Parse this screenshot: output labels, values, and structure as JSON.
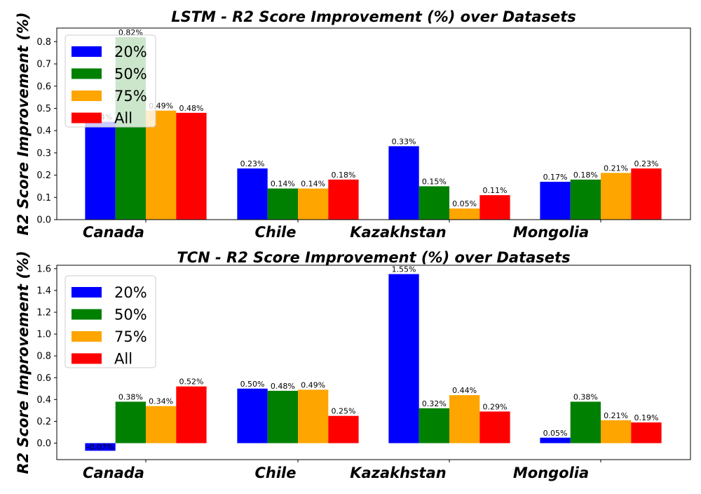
{
  "colors": {
    "20%": "#0000ff",
    "50%": "#008000",
    "75%": "#ffa500",
    "All": "#ff0000"
  },
  "chart_data": [
    {
      "type": "bar",
      "title": "LSTM - R2 Score Improvement (%) over Datasets",
      "ylabel": "R2 Score Improvement (%)",
      "categories": [
        "Canada",
        "Chile",
        "Kazakhstan",
        "Mongolia"
      ],
      "series": [
        {
          "name": "20%",
          "values": [
            0.44,
            0.23,
            0.33,
            0.17
          ],
          "labels": [
            "0.44%",
            "0.23%",
            "0.33%",
            "0.17%"
          ]
        },
        {
          "name": "50%",
          "values": [
            0.82,
            0.14,
            0.15,
            0.18
          ],
          "labels": [
            "0.82%",
            "0.14%",
            "0.15%",
            "0.18%"
          ]
        },
        {
          "name": "75%",
          "values": [
            0.49,
            0.14,
            0.05,
            0.21
          ],
          "labels": [
            "0.49%",
            "0.14%",
            "0.05%",
            "0.21%"
          ]
        },
        {
          "name": "All",
          "values": [
            0.48,
            0.18,
            0.11,
            0.23
          ],
          "labels": [
            "0.48%",
            "0.18%",
            "0.11%",
            "0.23%"
          ]
        }
      ],
      "yticks": [
        "0.0",
        "0.1",
        "0.2",
        "0.3",
        "0.4",
        "0.5",
        "0.6",
        "0.7",
        "0.8"
      ],
      "ylim": [
        0,
        0.861
      ],
      "legend": "top-left"
    },
    {
      "type": "bar",
      "title": "TCN - R2 Score Improvement (%) over Datasets",
      "ylabel": "R2 Score Improvement (%)",
      "categories": [
        "Canada",
        "Chile",
        "Kazakhstan",
        "Mongolia"
      ],
      "series": [
        {
          "name": "20%",
          "values": [
            -0.07,
            0.5,
            1.55,
            0.05
          ],
          "labels": [
            "-0.07%",
            "0.50%",
            "1.55%",
            "0.05%"
          ]
        },
        {
          "name": "50%",
          "values": [
            0.38,
            0.48,
            0.32,
            0.38
          ],
          "labels": [
            "0.38%",
            "0.48%",
            "0.32%",
            "0.38%"
          ]
        },
        {
          "name": "75%",
          "values": [
            0.34,
            0.49,
            0.44,
            0.21
          ],
          "labels": [
            "0.34%",
            "0.49%",
            "0.44%",
            "0.21%"
          ]
        },
        {
          "name": "All",
          "values": [
            0.52,
            0.25,
            0.29,
            0.19
          ],
          "labels": [
            "0.52%",
            "0.25%",
            "0.29%",
            "0.19%"
          ]
        }
      ],
      "yticks": [
        "0.0",
        "0.2",
        "0.4",
        "0.6",
        "0.8",
        "1.0",
        "1.2",
        "1.4",
        "1.6"
      ],
      "ylim": [
        -0.151,
        1.631
      ],
      "legend": "top-left"
    }
  ]
}
